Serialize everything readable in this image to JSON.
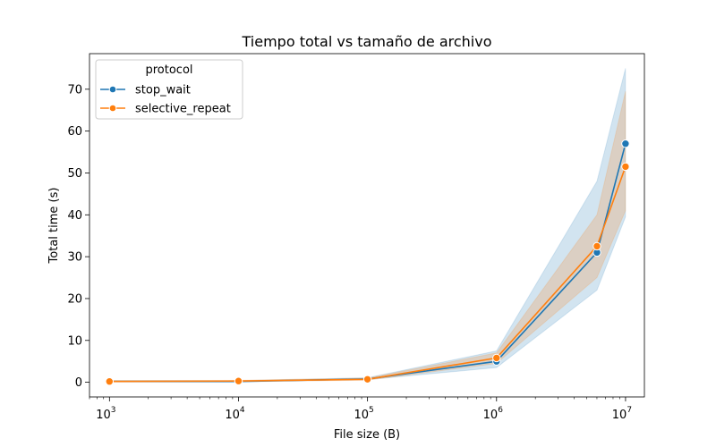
{
  "chart_data": {
    "type": "line",
    "title": "Tiempo total vs tamaño de archivo",
    "xlabel": "File size (B)",
    "ylabel": "Total time (s)",
    "xscale": "log",
    "xlim": [
      700,
      14000000
    ],
    "ylim": [
      -3.5,
      78.5
    ],
    "x_ticks": [
      {
        "value": 1000,
        "base": "10",
        "exp": "3"
      },
      {
        "value": 10000,
        "base": "10",
        "exp": "4"
      },
      {
        "value": 100000,
        "base": "10",
        "exp": "5"
      },
      {
        "value": 1000000,
        "base": "10",
        "exp": "6"
      },
      {
        "value": 10000000,
        "base": "10",
        "exp": "7"
      }
    ],
    "y_ticks": [
      0,
      10,
      20,
      30,
      40,
      50,
      60,
      70
    ],
    "grid": false,
    "legend": {
      "title": "protocol",
      "position": "top-left"
    },
    "x": [
      1000,
      10000,
      100000,
      1000000,
      6000000,
      10000000
    ],
    "series": [
      {
        "name": "stop_wait",
        "color": "#1f77b4",
        "values": [
          0.2,
          0.2,
          0.8,
          5.0,
          31.0,
          57.0
        ],
        "ci_low": [
          0.1,
          0.1,
          0.6,
          3.5,
          22.0,
          39.5
        ],
        "ci_high": [
          0.4,
          0.4,
          1.1,
          7.5,
          48.0,
          75.0
        ]
      },
      {
        "name": "selective_repeat",
        "color": "#ff7f0e",
        "values": [
          0.2,
          0.3,
          0.7,
          5.8,
          32.5,
          51.5
        ],
        "ci_low": [
          0.1,
          0.2,
          0.5,
          4.5,
          25.0,
          41.0
        ],
        "ci_high": [
          0.4,
          0.5,
          1.0,
          7.0,
          40.0,
          69.5
        ]
      }
    ]
  }
}
